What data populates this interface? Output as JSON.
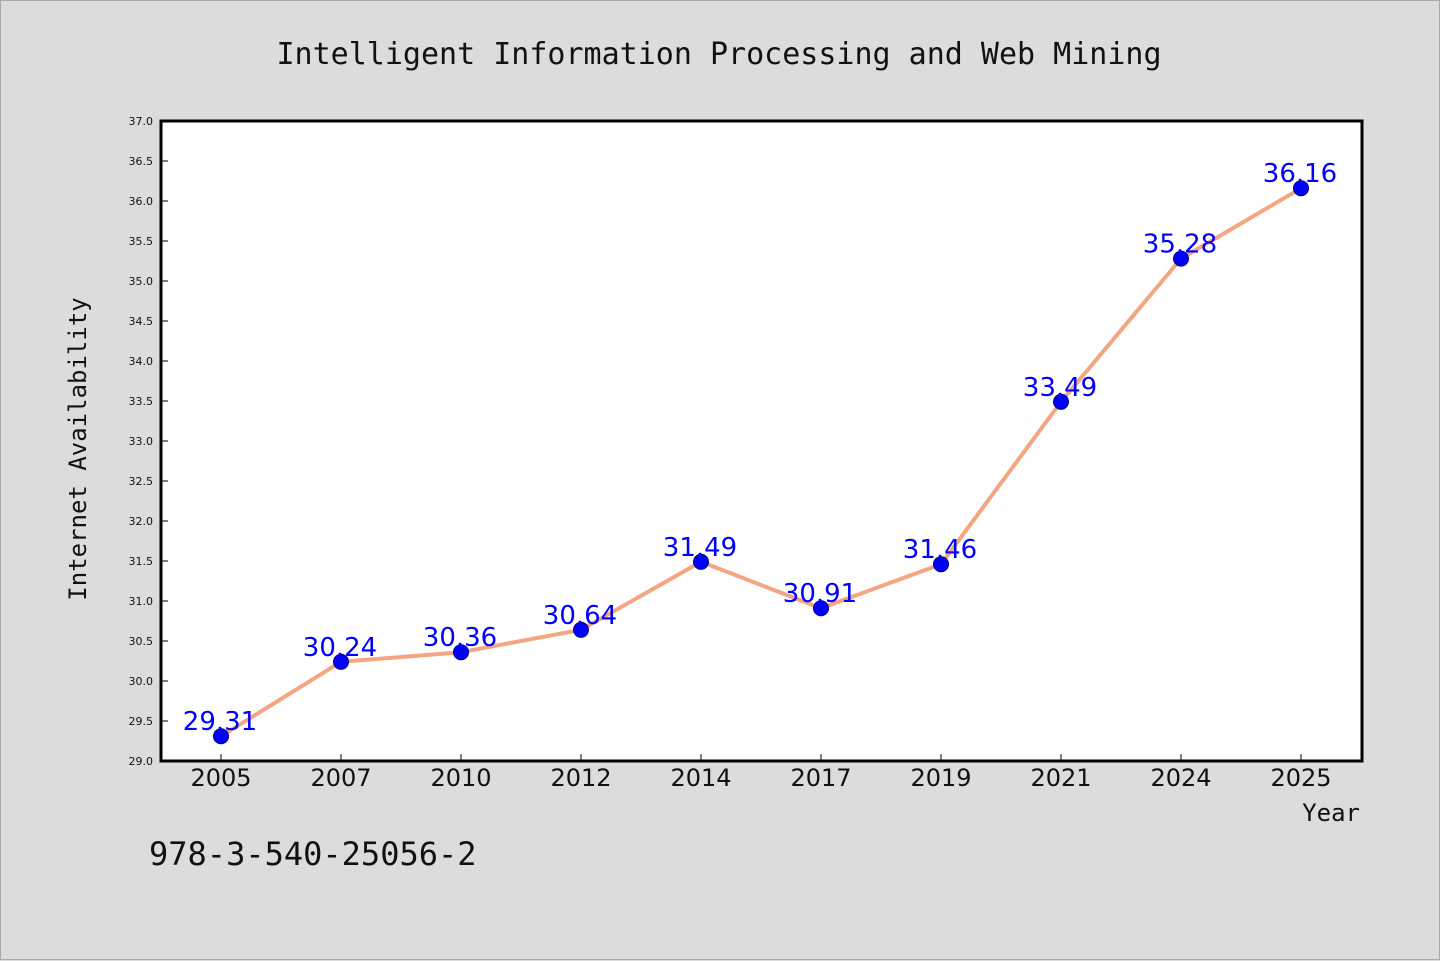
{
  "chart_data": {
    "type": "line",
    "title": "Intelligent Information Processing and Web Mining",
    "xlabel": "Year",
    "ylabel": "Internet Availability",
    "categories": [
      "2005",
      "2007",
      "2010",
      "2012",
      "2014",
      "2017",
      "2019",
      "2021",
      "2024",
      "2025"
    ],
    "series": [
      {
        "values": [
          29.31,
          30.24,
          30.36,
          30.64,
          31.49,
          30.91,
          31.46,
          33.49,
          35.28,
          36.16
        ]
      }
    ],
    "data_labels": [
      "29.31",
      "30.24",
      "30.36",
      "30.64",
      "31.49",
      "30.91",
      "31.46",
      "33.49",
      "35.28",
      "36.16"
    ],
    "ylim": [
      29.0,
      37.0
    ],
    "yticks": [
      "29.0",
      "29.5",
      "30.0",
      "30.5",
      "31.0",
      "31.5",
      "32.0",
      "32.5",
      "33.0",
      "33.5",
      "34.0",
      "34.5",
      "35.0",
      "35.5",
      "36.0",
      "36.5",
      "37.0"
    ],
    "grid": false,
    "legend": "none",
    "colors": {
      "line": "#f4a582",
      "marker": "#0000ff",
      "data_label": "#0000ff",
      "background": "#dcdcdc",
      "plot_background": "#ffffff"
    }
  },
  "annotation": "978-3-540-25056-2"
}
